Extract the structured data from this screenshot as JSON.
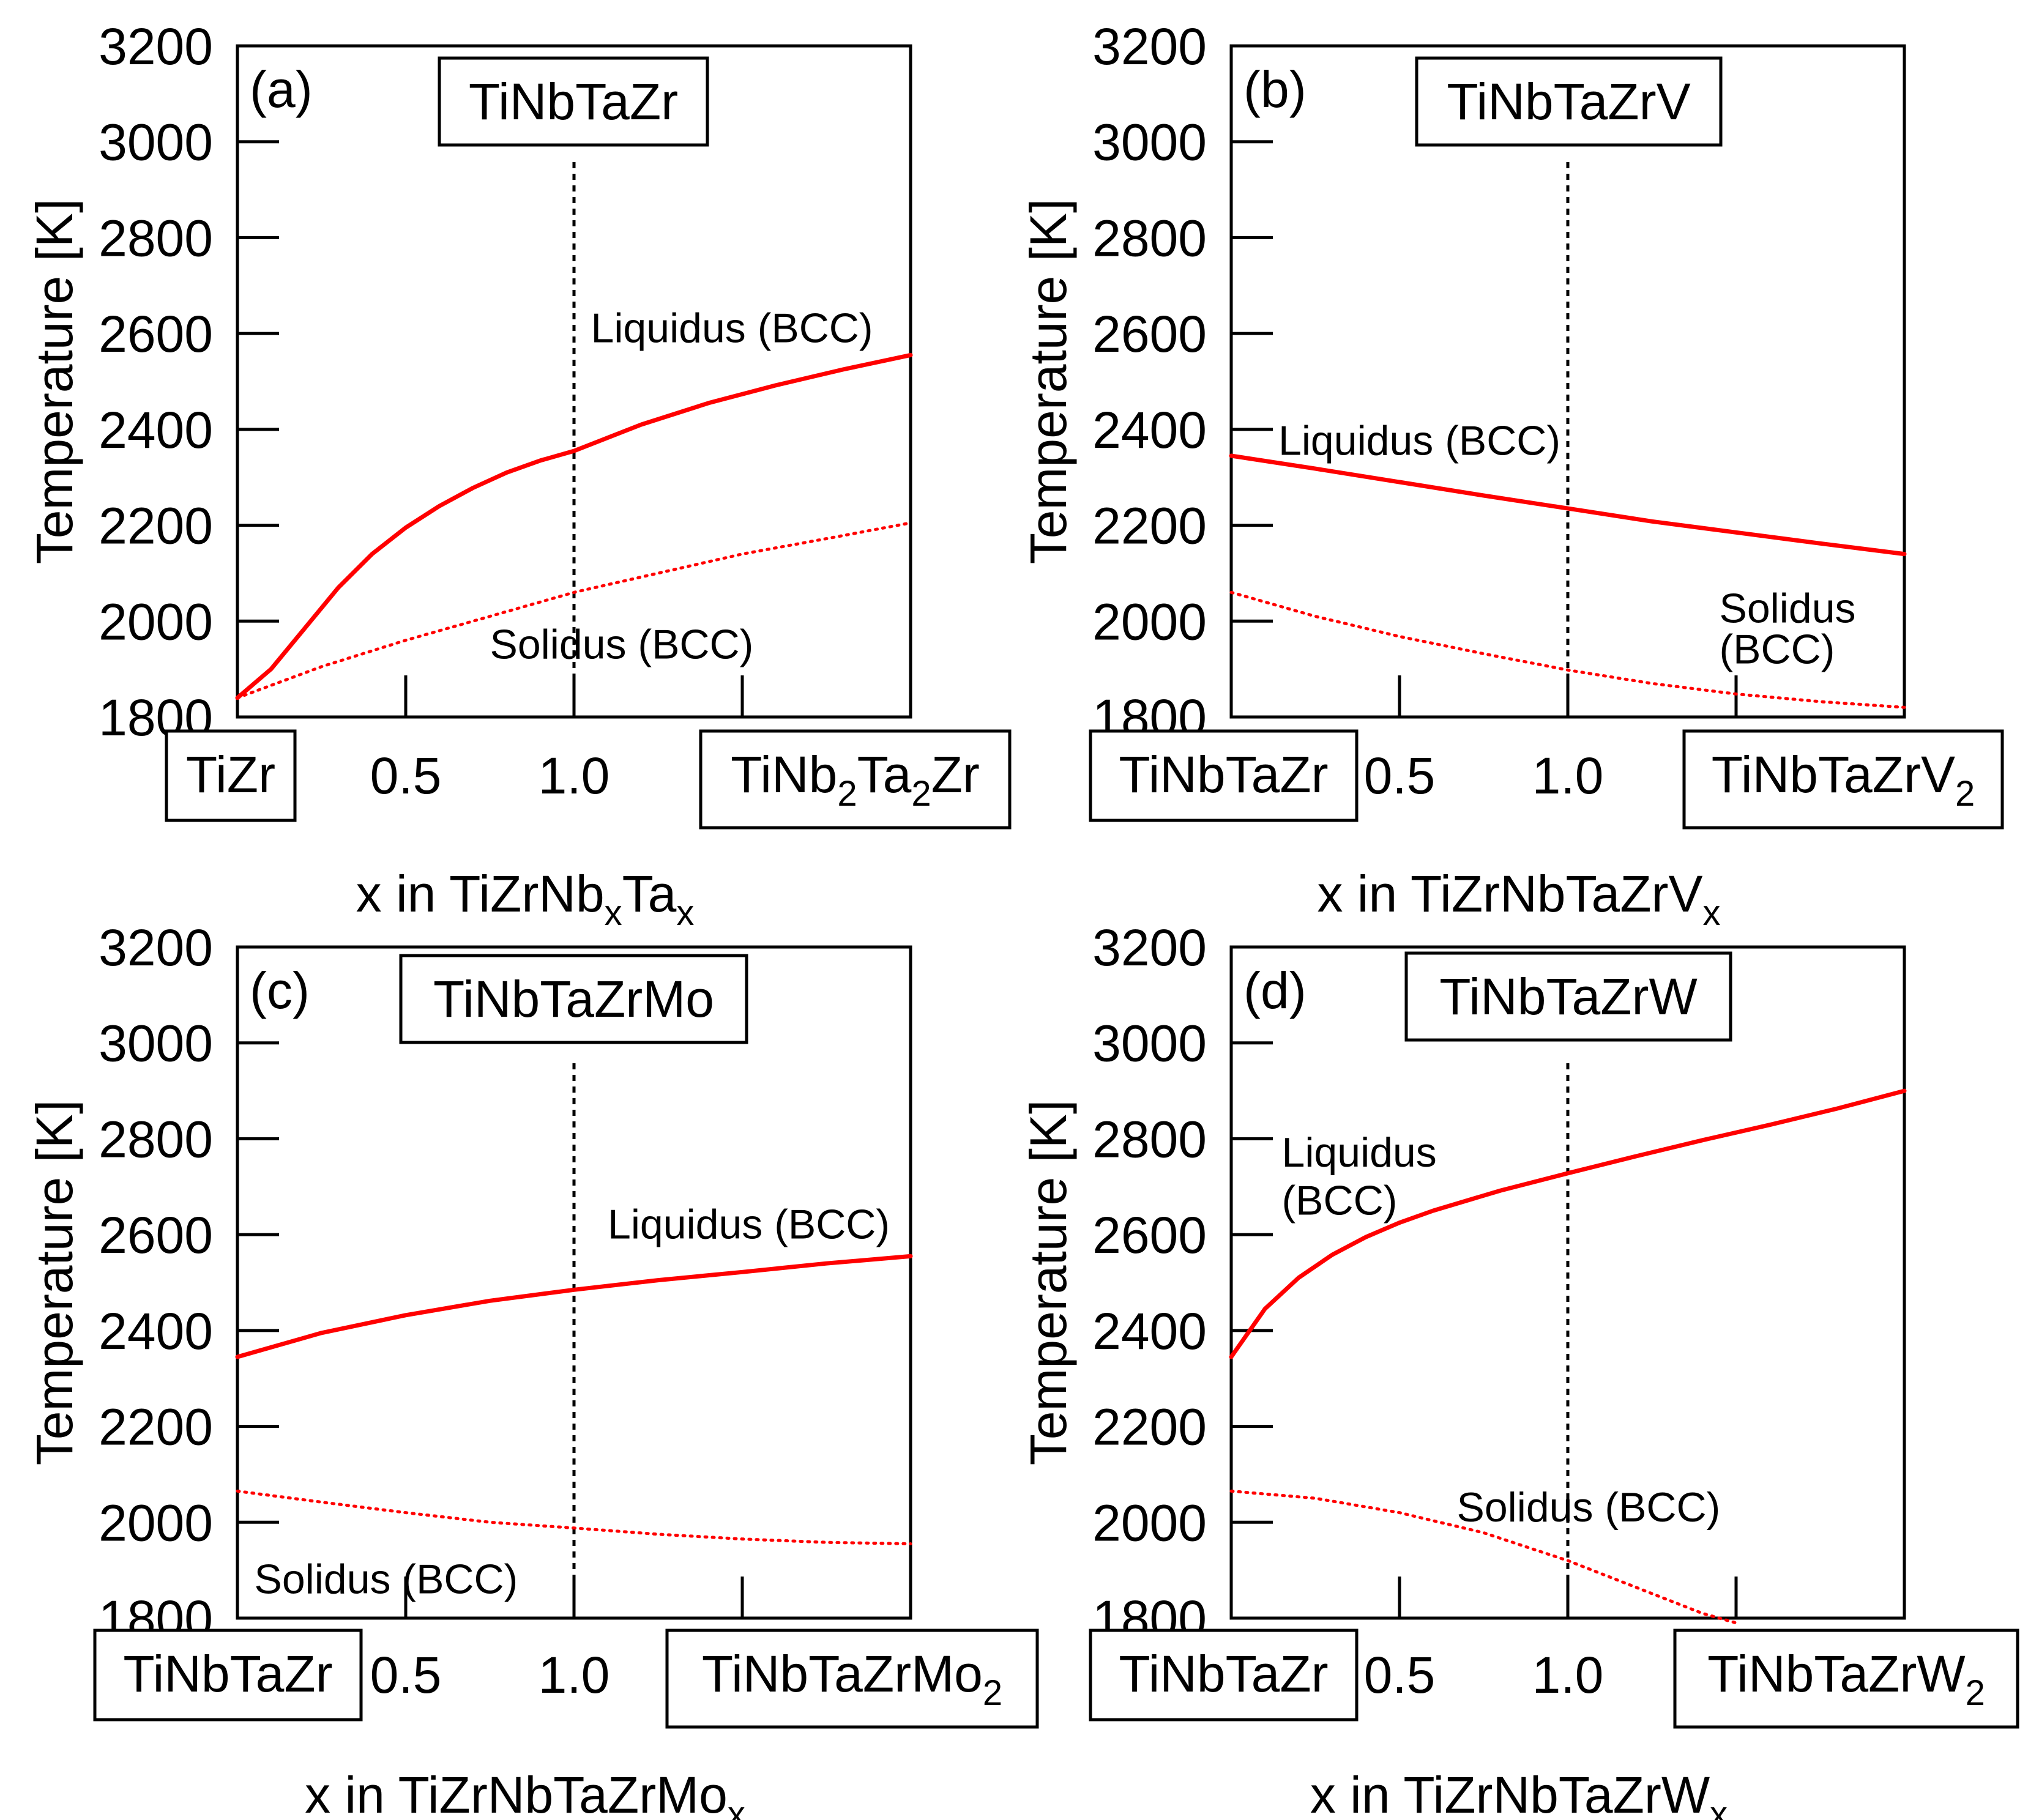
{
  "chart_data": [
    {
      "type": "line",
      "panel_label": "(a)",
      "title": "TiNbTaZr",
      "ylabel": "Temperature [K]",
      "xlabel": {
        "base": "x in TiZrNb",
        "sub1": "x",
        "mid": "Ta",
        "sub2": "x",
        "tail": ""
      },
      "xlim": [
        0,
        2
      ],
      "ylim": [
        1800,
        3200
      ],
      "yticks": [
        "1800",
        "2000",
        "2200",
        "2400",
        "2600",
        "2800",
        "3000",
        "3200"
      ],
      "xticks": [
        "0.5",
        "1.0"
      ],
      "left_end_label": {
        "base": "TiZr",
        "sub": ""
      },
      "right_end_label": {
        "base": "TiNb",
        "sub": "2",
        "mid": "Ta",
        "sub2": "2",
        "tail": "Zr"
      },
      "vline_x": 1.0,
      "series": [
        {
          "name": "Liquidus (BCC)",
          "style": "solid",
          "color": "#ff0000",
          "x": [
            0,
            0.1,
            0.2,
            0.3,
            0.4,
            0.5,
            0.6,
            0.7,
            0.8,
            0.9,
            1.0,
            1.2,
            1.4,
            1.6,
            1.8,
            2.0
          ],
          "y": [
            1840,
            1900,
            1985,
            2070,
            2140,
            2195,
            2240,
            2278,
            2310,
            2335,
            2355,
            2410,
            2455,
            2492,
            2525,
            2555
          ]
        },
        {
          "name": "Solidus (BCC)",
          "style": "dotted",
          "color": "#ff0000",
          "x": [
            0,
            0.25,
            0.5,
            0.75,
            1.0,
            1.25,
            1.5,
            1.75,
            2.0
          ],
          "y": [
            1840,
            1905,
            1960,
            2010,
            2060,
            2100,
            2140,
            2172,
            2205
          ]
        }
      ],
      "annotations": [
        {
          "text": "Liquidus (BCC)",
          "x": 1.05,
          "y": 2610
        },
        {
          "text": "Solidus (BCC)",
          "x": 0.75,
          "y": 1950
        }
      ]
    },
    {
      "type": "line",
      "panel_label": "(b)",
      "title": "TiNbTaZrV",
      "ylabel": "Temperature [K]",
      "xlabel": {
        "base": "x in TiZrNbTaZrV",
        "sub1": "x",
        "mid": "",
        "sub2": "",
        "tail": ""
      },
      "xlim": [
        0,
        2
      ],
      "ylim": [
        1800,
        3200
      ],
      "yticks": [
        "1800",
        "2000",
        "2200",
        "2400",
        "2600",
        "2800",
        "3000",
        "3200"
      ],
      "xticks": [
        "0.5",
        "1.0"
      ],
      "left_end_label": {
        "base": "TiNbTaZr",
        "sub": ""
      },
      "right_end_label": {
        "base": "TiNbTaZrV",
        "sub": "2",
        "mid": "",
        "sub2": "",
        "tail": ""
      },
      "vline_x": 1.0,
      "series": [
        {
          "name": "Liquidus (BCC)",
          "style": "solid",
          "color": "#ff0000",
          "x": [
            0,
            0.25,
            0.5,
            0.75,
            1.0,
            1.25,
            1.5,
            1.75,
            2.0
          ],
          "y": [
            2345,
            2318,
            2290,
            2262,
            2235,
            2208,
            2185,
            2162,
            2140
          ]
        },
        {
          "name": "Solidus (BCC)",
          "style": "dotted",
          "color": "#ff0000",
          "x": [
            0,
            0.25,
            0.5,
            0.75,
            1.0,
            1.25,
            1.5,
            1.75,
            2.0
          ],
          "y": [
            2060,
            2010,
            1968,
            1932,
            1898,
            1870,
            1848,
            1832,
            1820
          ]
        }
      ],
      "annotations": [
        {
          "text": "Liquidus (BCC)",
          "x": 0.14,
          "y": 2375
        },
        {
          "text": "Solidus",
          "x": 1.45,
          "y": 2025
        },
        {
          "text": "(BCC)",
          "x": 1.45,
          "y": 1940
        }
      ]
    },
    {
      "type": "line",
      "panel_label": "(c)",
      "title": "TiNbTaZrMo",
      "ylabel": "Temperature [K]",
      "xlabel": {
        "base": "x in TiZrNbTaZrMo",
        "sub1": "x",
        "mid": "",
        "sub2": "",
        "tail": ""
      },
      "xlim": [
        0,
        2
      ],
      "ylim": [
        1800,
        3200
      ],
      "yticks": [
        "1800",
        "2000",
        "2200",
        "2400",
        "2600",
        "2800",
        "3000",
        "3200"
      ],
      "xticks": [
        "0.5",
        "1.0"
      ],
      "left_end_label": {
        "base": "TiNbTaZr",
        "sub": ""
      },
      "right_end_label": {
        "base": "TiNbTaZrMo",
        "sub": "2",
        "mid": "",
        "sub2": "",
        "tail": ""
      },
      "vline_x": 1.0,
      "series": [
        {
          "name": "Liquidus (BCC)",
          "style": "solid",
          "color": "#ff0000",
          "x": [
            0,
            0.25,
            0.5,
            0.75,
            1.0,
            1.25,
            1.5,
            1.75,
            2.0
          ],
          "y": [
            2345,
            2395,
            2432,
            2462,
            2485,
            2505,
            2522,
            2540,
            2555
          ]
        },
        {
          "name": "Solidus (BCC)",
          "style": "dotted",
          "color": "#ff0000",
          "x": [
            0,
            0.25,
            0.5,
            0.75,
            1.0,
            1.25,
            1.5,
            1.75,
            2.0
          ],
          "y": [
            2065,
            2042,
            2020,
            2000,
            1988,
            1975,
            1965,
            1958,
            1955
          ]
        }
      ],
      "annotations": [
        {
          "text": "Liquidus (BCC)",
          "x": 1.1,
          "y": 2620
        },
        {
          "text": "Solidus (BCC)",
          "x": 0.05,
          "y": 1880
        }
      ]
    },
    {
      "type": "line",
      "panel_label": "(d)",
      "title": "TiNbTaZrW",
      "ylabel": "Temperature [K]",
      "xlabel": {
        "base": "x in TiZrNbTaZrW",
        "sub1": "x",
        "mid": "",
        "sub2": "",
        "tail": ""
      },
      "xlim": [
        0,
        2
      ],
      "ylim": [
        1800,
        3200
      ],
      "yticks": [
        "1800",
        "2000",
        "2200",
        "2400",
        "2600",
        "2800",
        "3000",
        "3200"
      ],
      "xticks": [
        "0.5",
        "1.0"
      ],
      "left_end_label": {
        "base": "TiNbTaZr",
        "sub": ""
      },
      "right_end_label": {
        "base": "TiNbTaZrW",
        "sub": "2",
        "mid": "",
        "sub2": "",
        "tail": ""
      },
      "vline_x": 1.0,
      "series": [
        {
          "name": "Liquidus (BCC)",
          "style": "solid",
          "color": "#ff0000",
          "x": [
            0,
            0.1,
            0.2,
            0.3,
            0.4,
            0.5,
            0.6,
            0.8,
            1.0,
            1.2,
            1.4,
            1.6,
            1.8,
            2.0
          ],
          "y": [
            2345,
            2445,
            2510,
            2558,
            2595,
            2625,
            2650,
            2692,
            2728,
            2763,
            2797,
            2829,
            2863,
            2900
          ]
        },
        {
          "name": "Solidus (BCC)",
          "style": "dotted",
          "color": "#ff0000",
          "x": [
            0,
            0.25,
            0.5,
            0.75,
            1.0,
            1.2,
            1.4,
            1.5
          ],
          "y": [
            2065,
            2050,
            2020,
            1978,
            1920,
            1865,
            1810,
            1790
          ]
        }
      ],
      "annotations": [
        {
          "text": "Liquidus",
          "x": 0.15,
          "y": 2770
        },
        {
          "text": "(BCC)",
          "x": 0.15,
          "y": 2670
        },
        {
          "text": "Solidus (BCC)",
          "x": 0.67,
          "y": 2030
        }
      ]
    }
  ]
}
